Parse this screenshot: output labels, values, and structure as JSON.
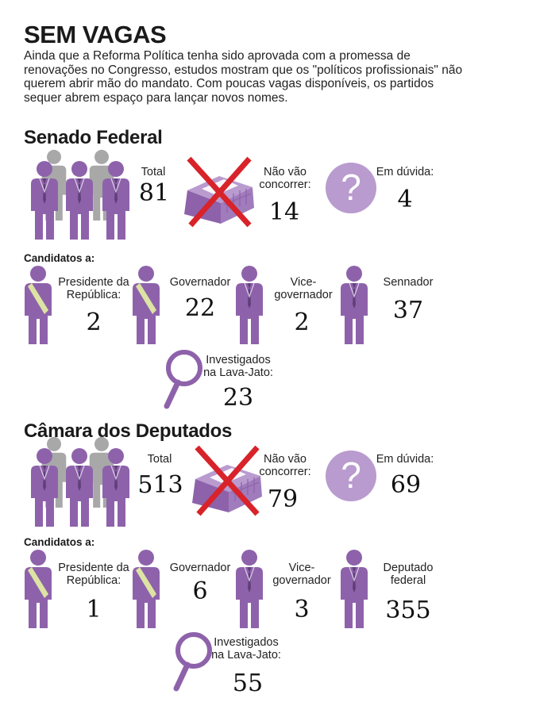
{
  "title": "SEM VAGAS",
  "intro": "Ainda que a Reforma Política tenha sido aprovada com a promessa de renovações no Congresso, estudos mostram que os \"políticos profissionais\" não querem abrir mão do mandato. Com poucas vagas disponíveis, os partidos sequer abrem espaço para lançar novos nomes.",
  "colors": {
    "purple": "#8e62ab",
    "light_purple": "#b99bcf",
    "gray": "#a8a8a8",
    "red": "#d8232a",
    "sash": "#dde4a3"
  },
  "senado": {
    "title": "Senado Federal",
    "total_label": "Total",
    "total": "81",
    "nao_label": "Não vão concorrer:",
    "nao": "14",
    "duvida_label": "Em dúvida:",
    "duvida": "4",
    "question_mark": "?",
    "candidatos_label": "Candidatos a:",
    "candidatos": [
      {
        "label": "Presidente da República:",
        "value": "2"
      },
      {
        "label": "Governador",
        "value": "22"
      },
      {
        "label": "Vice-governador",
        "value": "2"
      },
      {
        "label": "Sennador",
        "value": "37"
      }
    ],
    "investigados_label": "Investigados na Lava-Jato:",
    "investigados": "23"
  },
  "camara": {
    "title": "Câmara dos Deputados",
    "total_label": "Total",
    "total": "513",
    "nao_label": "Não vão concorrer:",
    "nao": "79",
    "duvida_label": "Em dúvida:",
    "duvida": "69",
    "question_mark": "?",
    "candidatos_label": "Candidatos a:",
    "candidatos": [
      {
        "label": "Presidente da República:",
        "value": "1"
      },
      {
        "label": "Governador",
        "value": "6"
      },
      {
        "label": "Vice-governador",
        "value": "3"
      },
      {
        "label": "Deputado federal",
        "value": "355"
      }
    ],
    "investigados_label": "Investigados na Lava-Jato:",
    "investigados": "55"
  }
}
